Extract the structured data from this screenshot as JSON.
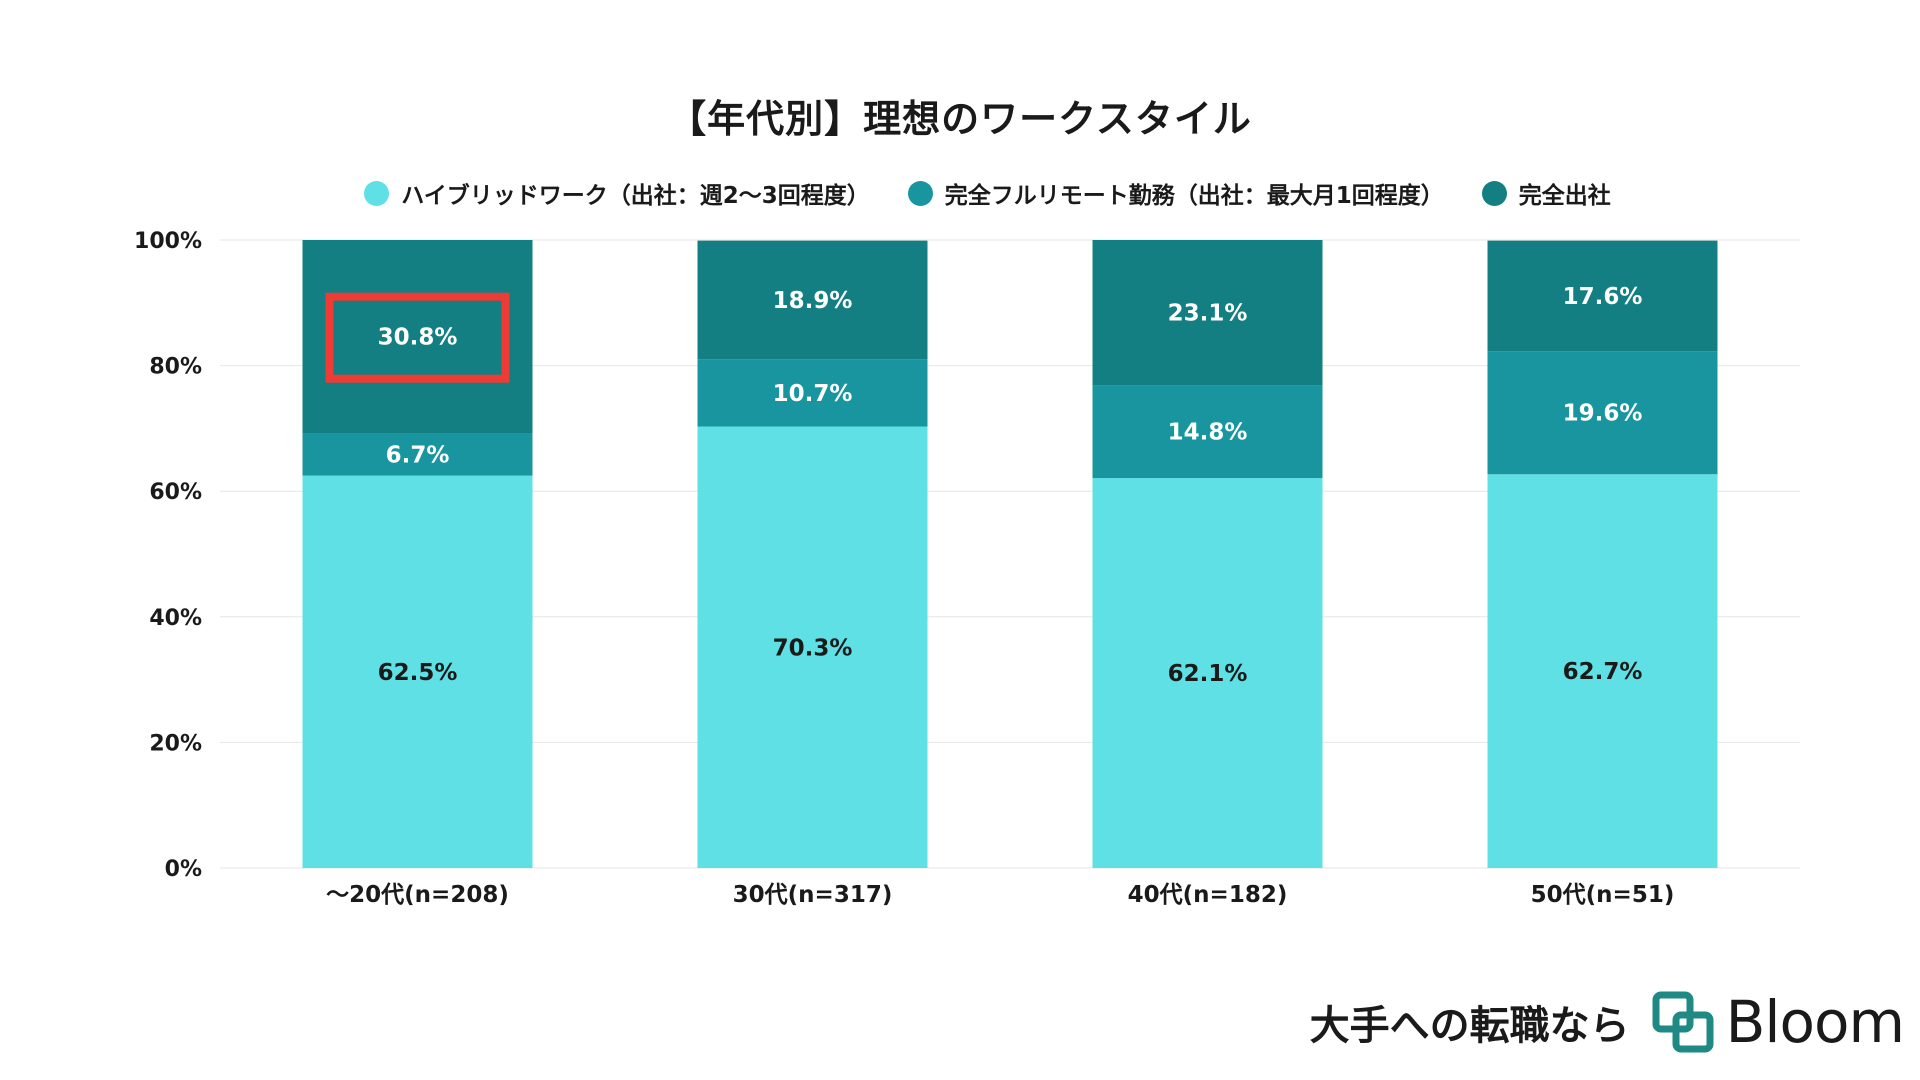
{
  "chart_data": {
    "type": "bar",
    "stacked": true,
    "title": "【年代別】理想のワークスタイル",
    "categories": [
      "〜20代(n=208)",
      "30代(n=317)",
      "40代(n=182)",
      "50代(n=51)"
    ],
    "series": [
      {
        "name": "ハイブリッドワーク（出社：週2〜3回程度）",
        "color": "#5ee0e5",
        "label_color": "#1a1a1a",
        "values": [
          62.5,
          70.3,
          62.1,
          62.7
        ],
        "labels": [
          "62.5%",
          "70.3%",
          "62.1%",
          "62.7%"
        ]
      },
      {
        "name": "完全フルリモート勤務（出社：最大月1回程度）",
        "color": "#18959e",
        "label_color": "#ffffff",
        "values": [
          6.7,
          10.7,
          14.8,
          19.6
        ],
        "labels": [
          "6.7%",
          "10.7%",
          "14.8%",
          "19.6%"
        ]
      },
      {
        "name": "完全出社",
        "color": "#137f82",
        "label_color": "#ffffff",
        "values": [
          30.8,
          18.9,
          23.1,
          17.6
        ],
        "labels": [
          "30.8%",
          "18.9%",
          "23.1%",
          "17.6%"
        ]
      }
    ],
    "ylim": [
      0,
      100
    ],
    "yticks": [
      0,
      20,
      40,
      60,
      80,
      100
    ],
    "ytick_labels": [
      "0%",
      "20%",
      "40%",
      "60%",
      "80%",
      "100%"
    ],
    "highlight": {
      "category_index": 0,
      "series_index": 2,
      "color": "#ee3b36"
    },
    "grid": true,
    "legend": "top-center"
  },
  "brand": {
    "tagline": "大手への転職なら",
    "name": "Bloom",
    "colors": {
      "logo_mark": "#1f8a83"
    }
  }
}
